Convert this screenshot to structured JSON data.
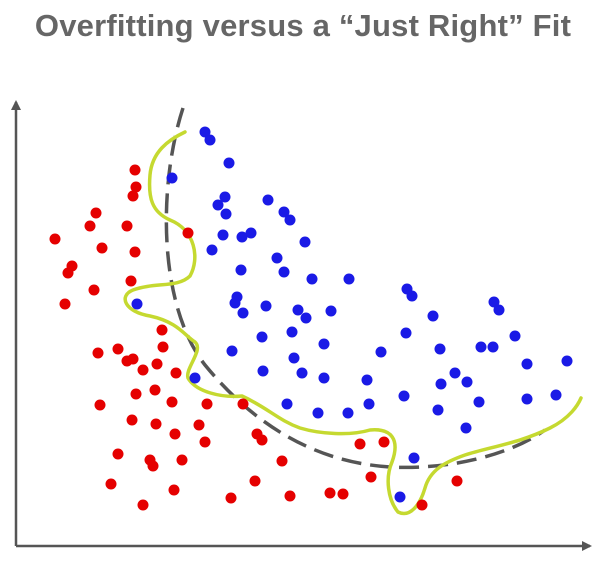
{
  "chart_data": {
    "type": "scatter",
    "title": "Overfitting versus a “Just Right” Fit",
    "xlabel": "",
    "ylabel": "",
    "grid": false,
    "legend": "none",
    "colors": {
      "class_a": "#e50000",
      "class_b": "#1a1ae6",
      "overfit_curve": "#c5d930",
      "just_right_curve": "#555555",
      "axis": "#555555",
      "title": "#666666"
    },
    "series": [
      {
        "points": [
          [
            55,
            239
          ],
          [
            72,
            266
          ],
          [
            68,
            273
          ],
          [
            65,
            304
          ],
          [
            96,
            213
          ],
          [
            90,
            226
          ],
          [
            102,
            248
          ],
          [
            94,
            290
          ],
          [
            127,
            226
          ],
          [
            135,
            170
          ],
          [
            136,
            187
          ],
          [
            133,
            196
          ],
          [
            131,
            281
          ],
          [
            135,
            252
          ],
          [
            188,
            233
          ],
          [
            98,
            353
          ],
          [
            118,
            349
          ],
          [
            127,
            361
          ],
          [
            133,
            359
          ],
          [
            143,
            370
          ],
          [
            157,
            364
          ],
          [
            162,
            330
          ],
          [
            163,
            347
          ],
          [
            100,
            405
          ],
          [
            136,
            394
          ],
          [
            132,
            420
          ],
          [
            155,
            390
          ],
          [
            176,
            373
          ],
          [
            172,
            402
          ],
          [
            207,
            404
          ],
          [
            118,
            454
          ],
          [
            156,
            424
          ],
          [
            175,
            434
          ],
          [
            199,
            425
          ],
          [
            150,
            460
          ],
          [
            153,
            466
          ],
          [
            182,
            460
          ],
          [
            205,
            442
          ],
          [
            243,
            404
          ],
          [
            257,
            434
          ],
          [
            262,
            440
          ],
          [
            111,
            484
          ],
          [
            143,
            505
          ],
          [
            174,
            490
          ],
          [
            231,
            498
          ],
          [
            255,
            481
          ],
          [
            282,
            461
          ],
          [
            290,
            496
          ],
          [
            330,
            493
          ],
          [
            343,
            494
          ],
          [
            360,
            444
          ],
          [
            384,
            442
          ],
          [
            371,
            477
          ],
          [
            422,
            505
          ],
          [
            457,
            481
          ]
        ]
      },
      {
        "points": [
          [
            205,
            132
          ],
          [
            210,
            140
          ],
          [
            229,
            163
          ],
          [
            172,
            178
          ],
          [
            218,
            205
          ],
          [
            225,
            197
          ],
          [
            226,
            214
          ],
          [
            268,
            200
          ],
          [
            284,
            212
          ],
          [
            290,
            220
          ],
          [
            223,
            235
          ],
          [
            212,
            250
          ],
          [
            242,
            237
          ],
          [
            251,
            233
          ],
          [
            305,
            242
          ],
          [
            241,
            270
          ],
          [
            277,
            258
          ],
          [
            284,
            272
          ],
          [
            312,
            279
          ],
          [
            349,
            279
          ],
          [
            237,
            297
          ],
          [
            235,
            303
          ],
          [
            243,
            313
          ],
          [
            266,
            306
          ],
          [
            298,
            310
          ],
          [
            306,
            318
          ],
          [
            331,
            311
          ],
          [
            262,
            337
          ],
          [
            292,
            332
          ],
          [
            324,
            344
          ],
          [
            407,
            289
          ],
          [
            412,
            296
          ],
          [
            433,
            316
          ],
          [
            494,
            302
          ],
          [
            499,
            310
          ],
          [
            406,
            333
          ],
          [
            481,
            347
          ],
          [
            493,
            347
          ],
          [
            137,
            304
          ],
          [
            232,
            351
          ],
          [
            263,
            371
          ],
          [
            294,
            358
          ],
          [
            302,
            373
          ],
          [
            324,
            378
          ],
          [
            381,
            352
          ],
          [
            440,
            349
          ],
          [
            367,
            380
          ],
          [
            441,
            384
          ],
          [
            455,
            373
          ],
          [
            467,
            382
          ],
          [
            515,
            336
          ],
          [
            527,
            364
          ],
          [
            567,
            361
          ],
          [
            195,
            378
          ],
          [
            287,
            404
          ],
          [
            318,
            413
          ],
          [
            348,
            413
          ],
          [
            369,
            404
          ],
          [
            404,
            396
          ],
          [
            438,
            410
          ],
          [
            479,
            402
          ],
          [
            527,
            399
          ],
          [
            556,
            395
          ],
          [
            466,
            428
          ],
          [
            414,
            458
          ],
          [
            400,
            497
          ]
        ]
      }
    ]
  }
}
